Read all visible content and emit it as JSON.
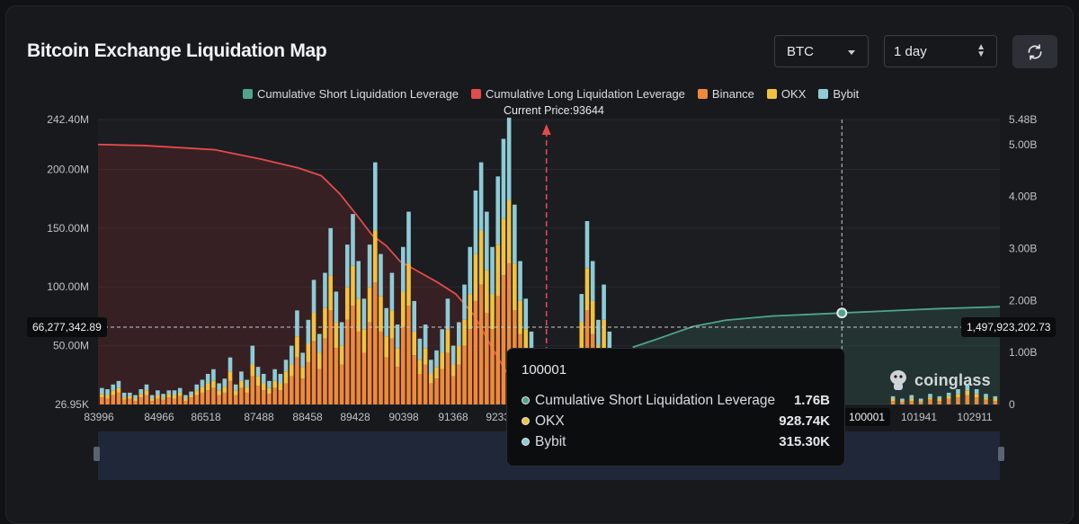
{
  "title": "Bitcoin Exchange Liquidation Map",
  "controls": {
    "coin": "BTC",
    "range": "1 day"
  },
  "legend": [
    {
      "label": "Cumulative Short Liquidation Leverage",
      "color": "#4fa58a"
    },
    {
      "label": "Cumulative Long Liquidation Leverage",
      "color": "#e34a4a"
    },
    {
      "label": "Binance",
      "color": "#ee8a3a"
    },
    {
      "label": "OKX",
      "color": "#f2c23f"
    },
    {
      "label": "Bybit",
      "color": "#8ecbd6"
    }
  ],
  "current_price_label": "Current Price:93644",
  "crosshair": {
    "left_value": "66,277,342.89",
    "right_value": "1,497,923,202.73",
    "x_value": "100001"
  },
  "tooltip": {
    "header": "100001",
    "rows": [
      {
        "label": "Cumulative Short Liquidation Leverage",
        "value": "1.76B",
        "color": "#4fa58a"
      },
      {
        "label": "OKX",
        "value": "928.74K",
        "color": "#f2c23f"
      },
      {
        "label": "Bybit",
        "value": "315.30K",
        "color": "#8ecbd6"
      }
    ]
  },
  "brand": "coinglass",
  "chart_data": {
    "type": "bar",
    "left_axis": {
      "ticks": [
        "242.40M",
        "200.00M",
        "150.00M",
        "100.00M",
        "50.00M",
        "26.95K"
      ],
      "min": 0,
      "max": 242400000
    },
    "right_axis": {
      "ticks": [
        "5.48B",
        "5.00B",
        "4.00B",
        "3.00B",
        "2.00B",
        "1.00B",
        "0"
      ],
      "min": 0,
      "max": 5480000000
    },
    "x_tick_labels": [
      "83996",
      "84966",
      "86518",
      "87488",
      "88458",
      "89428",
      "90398",
      "91368",
      "92338",
      "101941",
      "102911"
    ],
    "x_range": [
      83996,
      103400
    ],
    "current_price": 93644,
    "series": [
      {
        "name": "Cumulative Long Liquidation Leverage",
        "color": "#e34a4a",
        "points": [
          [
            83996,
            5.0
          ],
          [
            85000,
            4.98
          ],
          [
            86500,
            4.9
          ],
          [
            87500,
            4.72
          ],
          [
            88300,
            4.55
          ],
          [
            88800,
            4.4
          ],
          [
            89200,
            4.05
          ],
          [
            89600,
            3.6
          ],
          [
            89900,
            3.25
          ],
          [
            90200,
            3.05
          ],
          [
            90500,
            2.75
          ],
          [
            90900,
            2.55
          ],
          [
            91300,
            2.35
          ],
          [
            91700,
            2.12
          ],
          [
            92100,
            1.7
          ],
          [
            92500,
            1.05
          ],
          [
            92900,
            0.45
          ],
          [
            93300,
            0.1
          ],
          [
            93644,
            0.0
          ]
        ]
      },
      {
        "name": "Cumulative Short Liquidation Leverage",
        "color": "#4fa58a",
        "points": [
          [
            95500,
            1.1
          ],
          [
            96000,
            1.25
          ],
          [
            96800,
            1.5
          ],
          [
            97500,
            1.62
          ],
          [
            98500,
            1.7
          ],
          [
            100001,
            1.76
          ],
          [
            101000,
            1.8
          ],
          [
            102000,
            1.84
          ],
          [
            103400,
            1.88
          ]
        ]
      }
    ],
    "bars": [
      [
        84080,
        6,
        3,
        5
      ],
      [
        84200,
        5,
        3,
        5
      ],
      [
        84320,
        8,
        4,
        5
      ],
      [
        84440,
        10,
        4,
        6
      ],
      [
        84560,
        4,
        2,
        4
      ],
      [
        84680,
        5,
        2,
        3
      ],
      [
        84800,
        3,
        2,
        3
      ],
      [
        84920,
        6,
        3,
        4
      ],
      [
        85040,
        8,
        4,
        5
      ],
      [
        85160,
        3,
        2,
        3
      ],
      [
        85280,
        5,
        3,
        4
      ],
      [
        85400,
        4,
        2,
        3
      ],
      [
        85520,
        6,
        3,
        3
      ],
      [
        85640,
        5,
        3,
        4
      ],
      [
        85760,
        7,
        3,
        4
      ],
      [
        85880,
        3,
        2,
        3
      ],
      [
        86000,
        6,
        2,
        3
      ],
      [
        86120,
        8,
        4,
        5
      ],
      [
        86240,
        10,
        5,
        6
      ],
      [
        86360,
        12,
        6,
        8
      ],
      [
        86480,
        14,
        6,
        10
      ],
      [
        86600,
        8,
        4,
        6
      ],
      [
        86720,
        10,
        5,
        7
      ],
      [
        86840,
        20,
        8,
        12
      ],
      [
        86960,
        8,
        4,
        5
      ],
      [
        87080,
        14,
        6,
        8
      ],
      [
        87200,
        10,
        5,
        6
      ],
      [
        87320,
        24,
        10,
        16
      ],
      [
        87440,
        16,
        8,
        8
      ],
      [
        87560,
        12,
        6,
        8
      ],
      [
        87680,
        9,
        5,
        6
      ],
      [
        87800,
        14,
        6,
        10
      ],
      [
        87920,
        12,
        6,
        8
      ],
      [
        88040,
        18,
        10,
        10
      ],
      [
        88160,
        24,
        10,
        16
      ],
      [
        88280,
        40,
        18,
        22
      ],
      [
        88400,
        22,
        10,
        12
      ],
      [
        88520,
        36,
        16,
        20
      ],
      [
        88640,
        54,
        24,
        28
      ],
      [
        88760,
        30,
        14,
        16
      ],
      [
        88880,
        56,
        26,
        30
      ],
      [
        89000,
        80,
        30,
        40
      ],
      [
        89120,
        48,
        22,
        26
      ],
      [
        89240,
        34,
        16,
        20
      ],
      [
        89360,
        72,
        28,
        36
      ],
      [
        89480,
        84,
        34,
        44
      ],
      [
        89600,
        62,
        28,
        32
      ],
      [
        89720,
        44,
        20,
        26
      ],
      [
        89840,
        70,
        30,
        36
      ],
      [
        89960,
        104,
        44,
        58
      ],
      [
        90080,
        62,
        30,
        36
      ],
      [
        90200,
        40,
        18,
        24
      ],
      [
        90320,
        56,
        24,
        32
      ],
      [
        90440,
        32,
        16,
        20
      ],
      [
        90560,
        66,
        30,
        38
      ],
      [
        90680,
        84,
        36,
        44
      ],
      [
        90800,
        42,
        20,
        26
      ],
      [
        90920,
        26,
        12,
        18
      ],
      [
        91040,
        34,
        14,
        20
      ],
      [
        91160,
        18,
        8,
        12
      ],
      [
        91280,
        22,
        10,
        14
      ],
      [
        91400,
        30,
        14,
        20
      ],
      [
        91520,
        44,
        20,
        26
      ],
      [
        91640,
        24,
        10,
        16
      ],
      [
        91760,
        34,
        16,
        20
      ],
      [
        91880,
        50,
        22,
        30
      ],
      [
        92000,
        64,
        30,
        40
      ],
      [
        92120,
        88,
        40,
        54
      ],
      [
        92240,
        102,
        46,
        58
      ],
      [
        92360,
        78,
        36,
        50
      ],
      [
        92480,
        64,
        30,
        40
      ],
      [
        92600,
        92,
        44,
        58
      ],
      [
        92720,
        110,
        48,
        68
      ],
      [
        92840,
        120,
        54,
        70
      ],
      [
        92960,
        80,
        40,
        50
      ],
      [
        93080,
        60,
        28,
        34
      ],
      [
        93200,
        44,
        20,
        26
      ],
      [
        93320,
        30,
        14,
        18
      ],
      [
        93500,
        0,
        4,
        8
      ],
      [
        94400,
        44,
        26,
        24
      ],
      [
        94520,
        80,
        36,
        40
      ],
      [
        94640,
        60,
        28,
        34
      ],
      [
        94760,
        34,
        16,
        22
      ],
      [
        94880,
        48,
        24,
        30
      ],
      [
        95000,
        30,
        14,
        18
      ],
      [
        95120,
        20,
        10,
        12
      ],
      [
        95240,
        8,
        6,
        8
      ],
      [
        97000,
        2,
        1,
        1
      ],
      [
        98000,
        2,
        1,
        2
      ],
      [
        99000,
        2,
        1,
        1
      ],
      [
        100001,
        2,
        1,
        2
      ],
      [
        101100,
        3,
        2,
        2
      ],
      [
        101300,
        2,
        1,
        2
      ],
      [
        101500,
        3,
        2,
        3
      ],
      [
        101700,
        2,
        1,
        2
      ],
      [
        101900,
        4,
        2,
        3
      ],
      [
        102100,
        3,
        2,
        2
      ],
      [
        102300,
        5,
        2,
        3
      ],
      [
        102500,
        6,
        3,
        4
      ],
      [
        102700,
        8,
        4,
        5
      ],
      [
        102900,
        6,
        3,
        4
      ],
      [
        103100,
        4,
        2,
        3
      ],
      [
        103300,
        3,
        2,
        2
      ]
    ]
  }
}
